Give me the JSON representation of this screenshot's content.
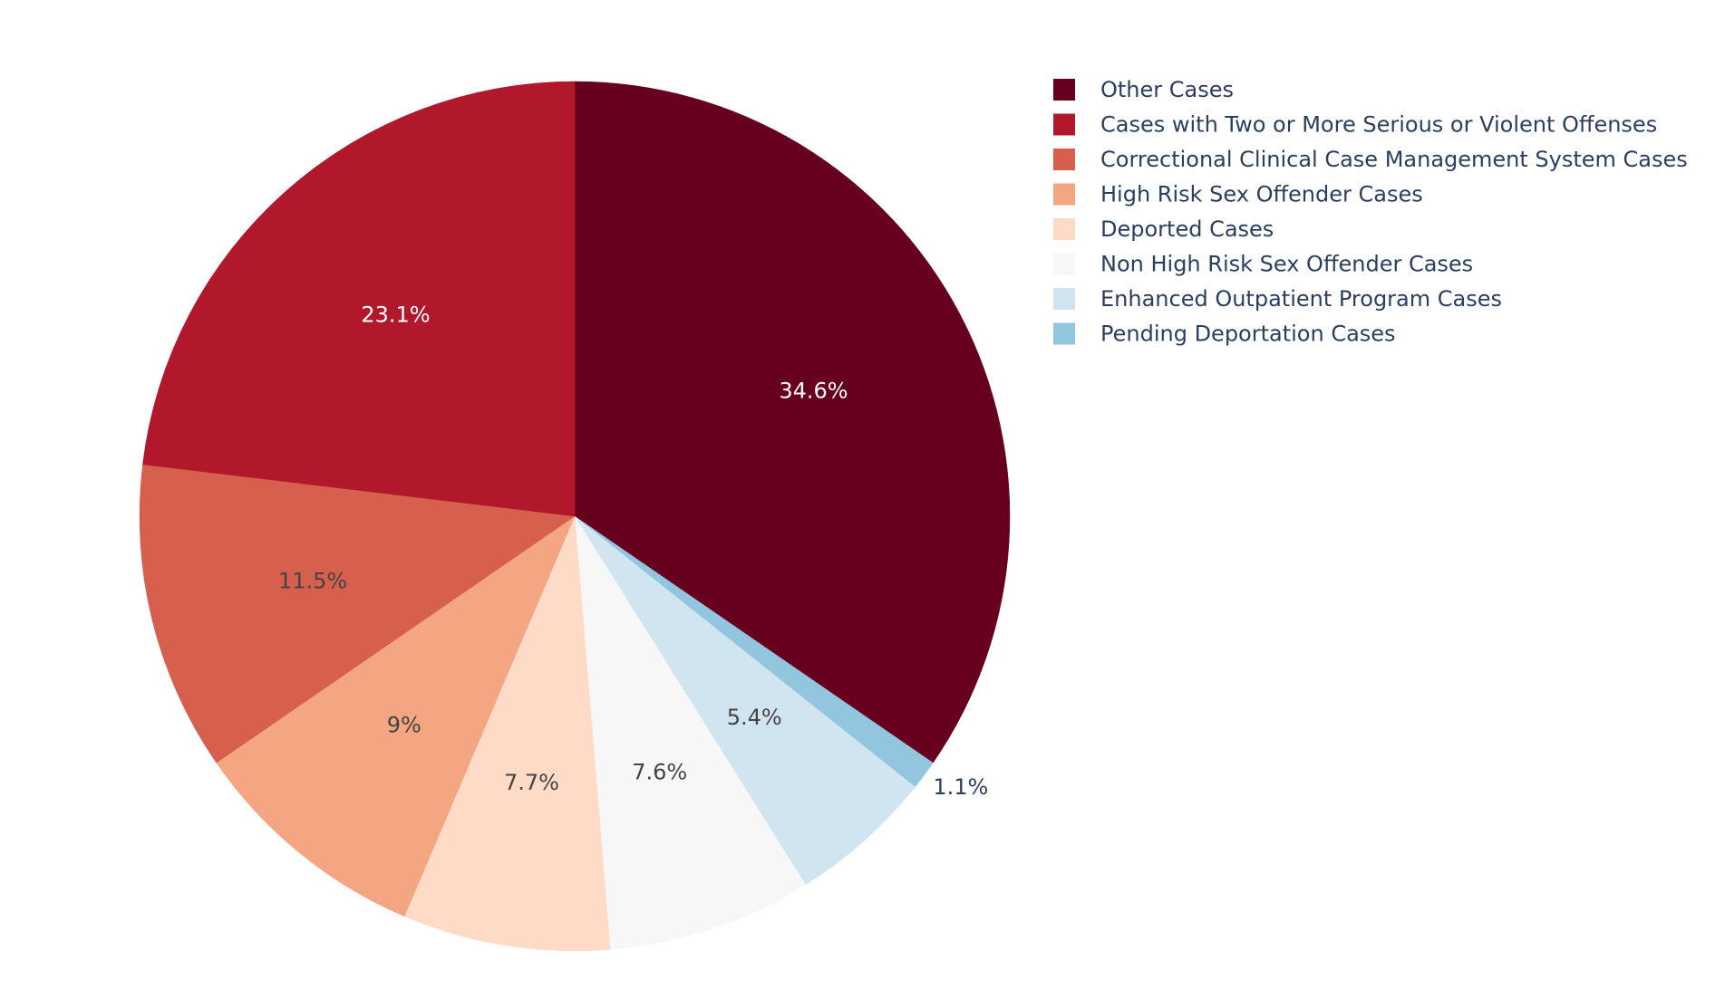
{
  "chart_data": {
    "type": "pie",
    "start": "12 o'clock",
    "direction": "clockwise",
    "legend_placement": "top-right",
    "text_info": "percent",
    "slices": [
      {
        "label": "Other Cases",
        "percent": 34.6,
        "percent_label": "34.6%",
        "color": "#67001f",
        "text_color": "#ffffff",
        "label_position": "inside"
      },
      {
        "label": "Pending Deportation Cases",
        "percent": 1.1,
        "percent_label": "1.1%",
        "color": "#92c5de",
        "text_color": "#2a3f5f",
        "label_position": "outside"
      },
      {
        "label": "Enhanced Outpatient Program Cases",
        "percent": 5.4,
        "percent_label": "5.4%",
        "color": "#d1e5f0",
        "text_color": "#444444",
        "label_position": "inside"
      },
      {
        "label": "Non High Risk Sex Offender Cases",
        "percent": 7.6,
        "percent_label": "7.6%",
        "color": "#f7f7f7",
        "text_color": "#444444",
        "label_position": "inside"
      },
      {
        "label": "Deported Cases",
        "percent": 7.7,
        "percent_label": "7.7%",
        "color": "#fddbc7",
        "text_color": "#444444",
        "label_position": "inside"
      },
      {
        "label": "High Risk Sex Offender Cases",
        "percent": 9.0,
        "percent_label": "9%",
        "color": "#f4a582",
        "text_color": "#444444",
        "label_position": "inside"
      },
      {
        "label": "Correctional Clinical Case Management System Cases",
        "percent": 11.5,
        "percent_label": "11.5%",
        "color": "#d6604d",
        "text_color": "#444444",
        "label_position": "inside"
      },
      {
        "label": "Cases with Two or More Serious or Violent Offenses",
        "percent": 23.1,
        "percent_label": "23.1%",
        "color": "#b2182b",
        "text_color": "#ffffff",
        "label_position": "inside"
      }
    ],
    "legend": [
      {
        "label": "Other Cases",
        "color": "#67001f"
      },
      {
        "label": "Cases with Two or More Serious or Violent Offenses",
        "color": "#b2182b"
      },
      {
        "label": "Correctional Clinical Case Management System Cases",
        "color": "#d6604d"
      },
      {
        "label": "High Risk Sex Offender Cases",
        "color": "#f4a582"
      },
      {
        "label": "Deported Cases",
        "color": "#fddbc7"
      },
      {
        "label": "Non High Risk Sex Offender Cases",
        "color": "#f7f7f7"
      },
      {
        "label": "Enhanced Outpatient Program Cases",
        "color": "#d1e5f0"
      },
      {
        "label": "Pending Deportation Cases",
        "color": "#92c5de"
      }
    ],
    "legend_text_color": "#2a3f5f"
  }
}
